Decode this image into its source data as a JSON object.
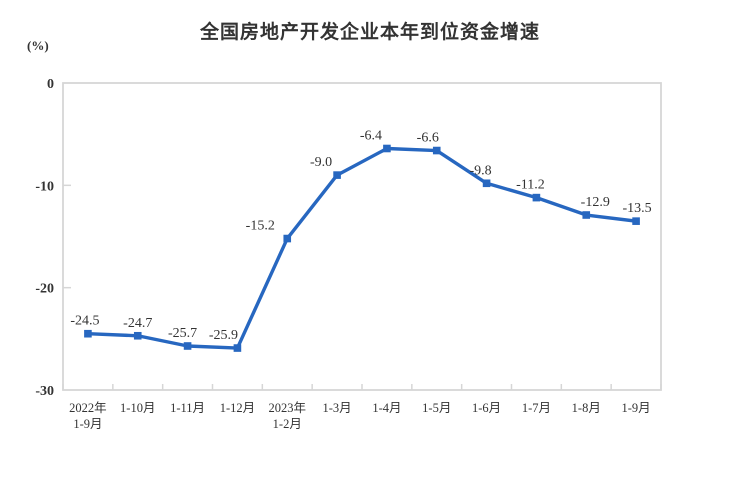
{
  "chart_data": {
    "type": "line",
    "title": "全国房地产开发企业本年到位资金增速",
    "ylabel": "(%)",
    "categories": [
      [
        "2022年",
        "1-9月"
      ],
      [
        "1-10月"
      ],
      [
        "1-11月"
      ],
      [
        "1-12月"
      ],
      [
        "2023年",
        "1-2月"
      ],
      [
        "1-3月"
      ],
      [
        "1-4月"
      ],
      [
        "1-5月"
      ],
      [
        "1-6月"
      ],
      [
        "1-7月"
      ],
      [
        "1-8月"
      ],
      [
        "1-9月"
      ]
    ],
    "values": [
      -24.5,
      -24.7,
      -25.7,
      -25.9,
      -15.2,
      -9.0,
      -6.4,
      -6.6,
      -9.8,
      -11.2,
      -12.9,
      -13.5
    ],
    "data_labels": [
      "-24.5",
      "-24.7",
      "-25.7",
      "-25.9",
      "-15.2",
      "-9.0",
      "-6.4",
      "-6.6",
      "-9.8",
      "-11.2",
      "-12.9",
      "-13.5"
    ],
    "ylim": [
      -30,
      0
    ],
    "yticks": [
      0,
      -10,
      -20,
      -30
    ],
    "grid": false,
    "legend": "none",
    "line_color": "#2767C0",
    "marker_shape": "square",
    "text_color": "#333333",
    "border_color": "#D6D6D6"
  }
}
